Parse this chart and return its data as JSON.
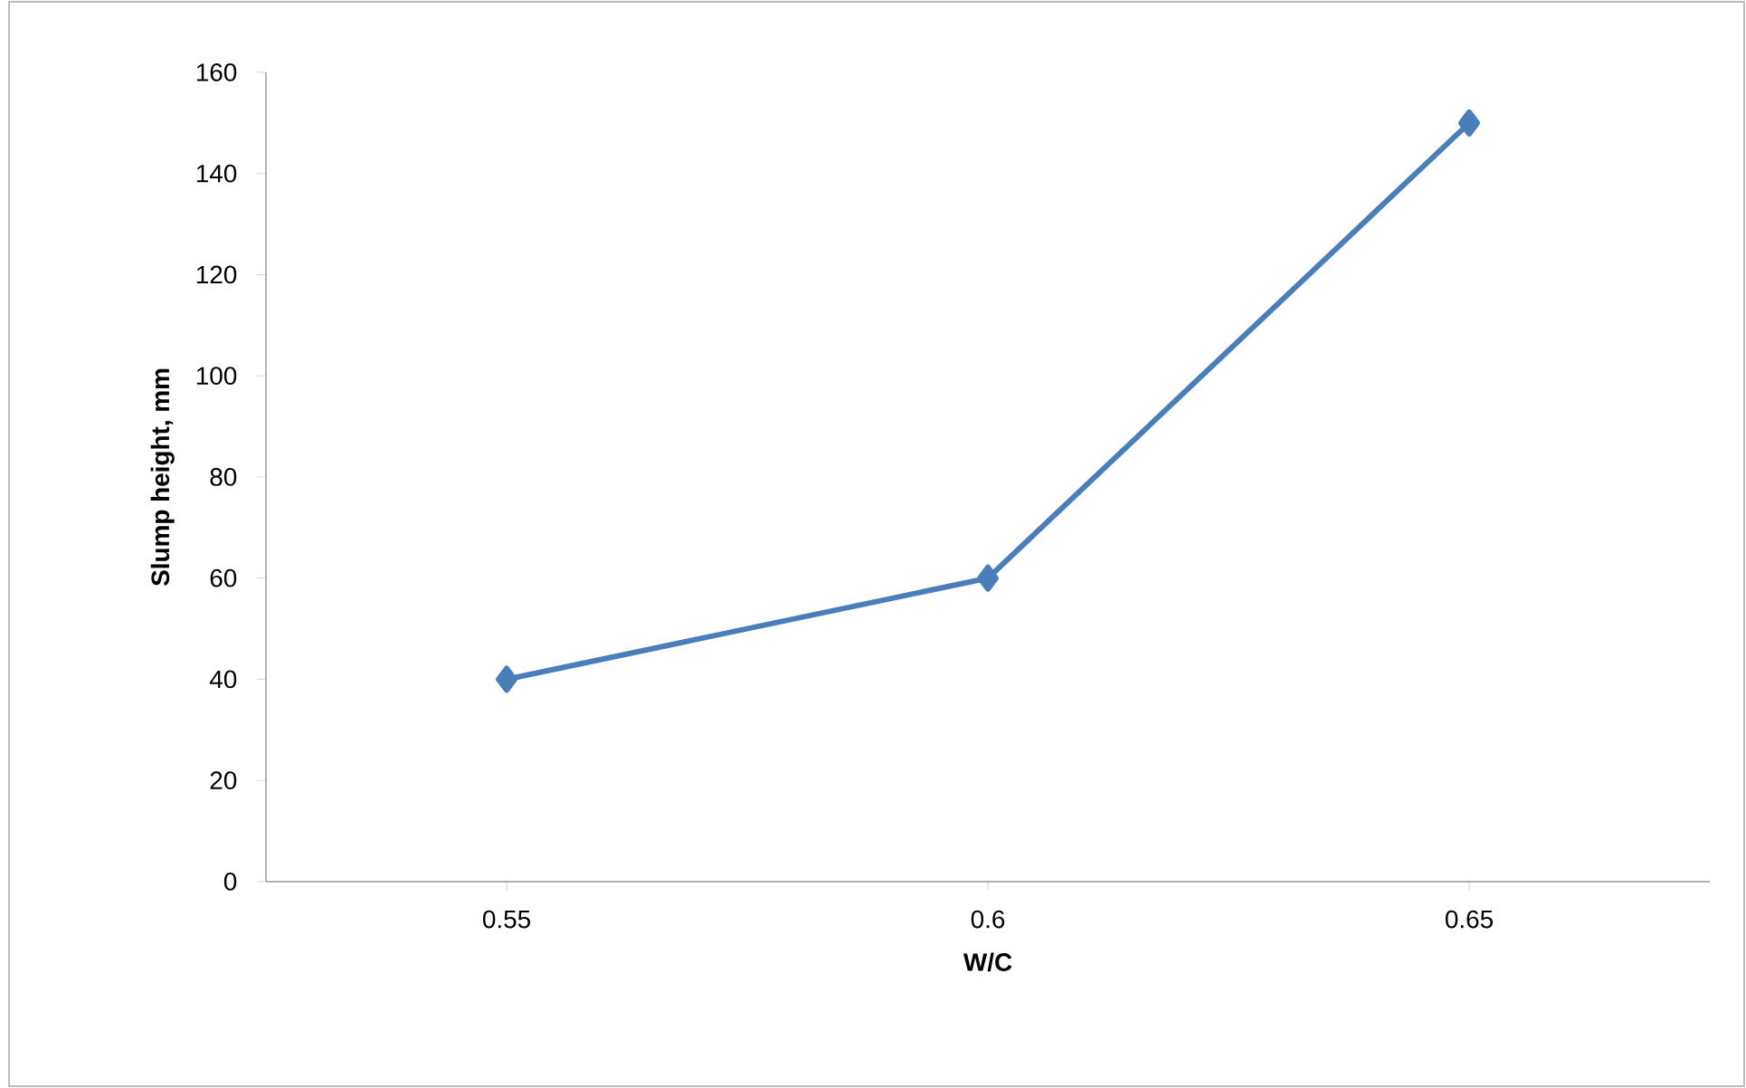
{
  "chart_data": {
    "type": "line",
    "xlabel": "W/C",
    "ylabel": "Slump height, mm",
    "categories": [
      "0.55",
      "0.6",
      "0.65"
    ],
    "series": [
      {
        "color": "#4a7ebb",
        "values": [
          40,
          60,
          150
        ]
      }
    ],
    "ylim": [
      0,
      160
    ],
    "yticks": [
      0,
      20,
      40,
      60,
      80,
      100,
      120,
      140,
      160
    ],
    "grid": false,
    "marker": "diamond",
    "line_style": "solid"
  }
}
